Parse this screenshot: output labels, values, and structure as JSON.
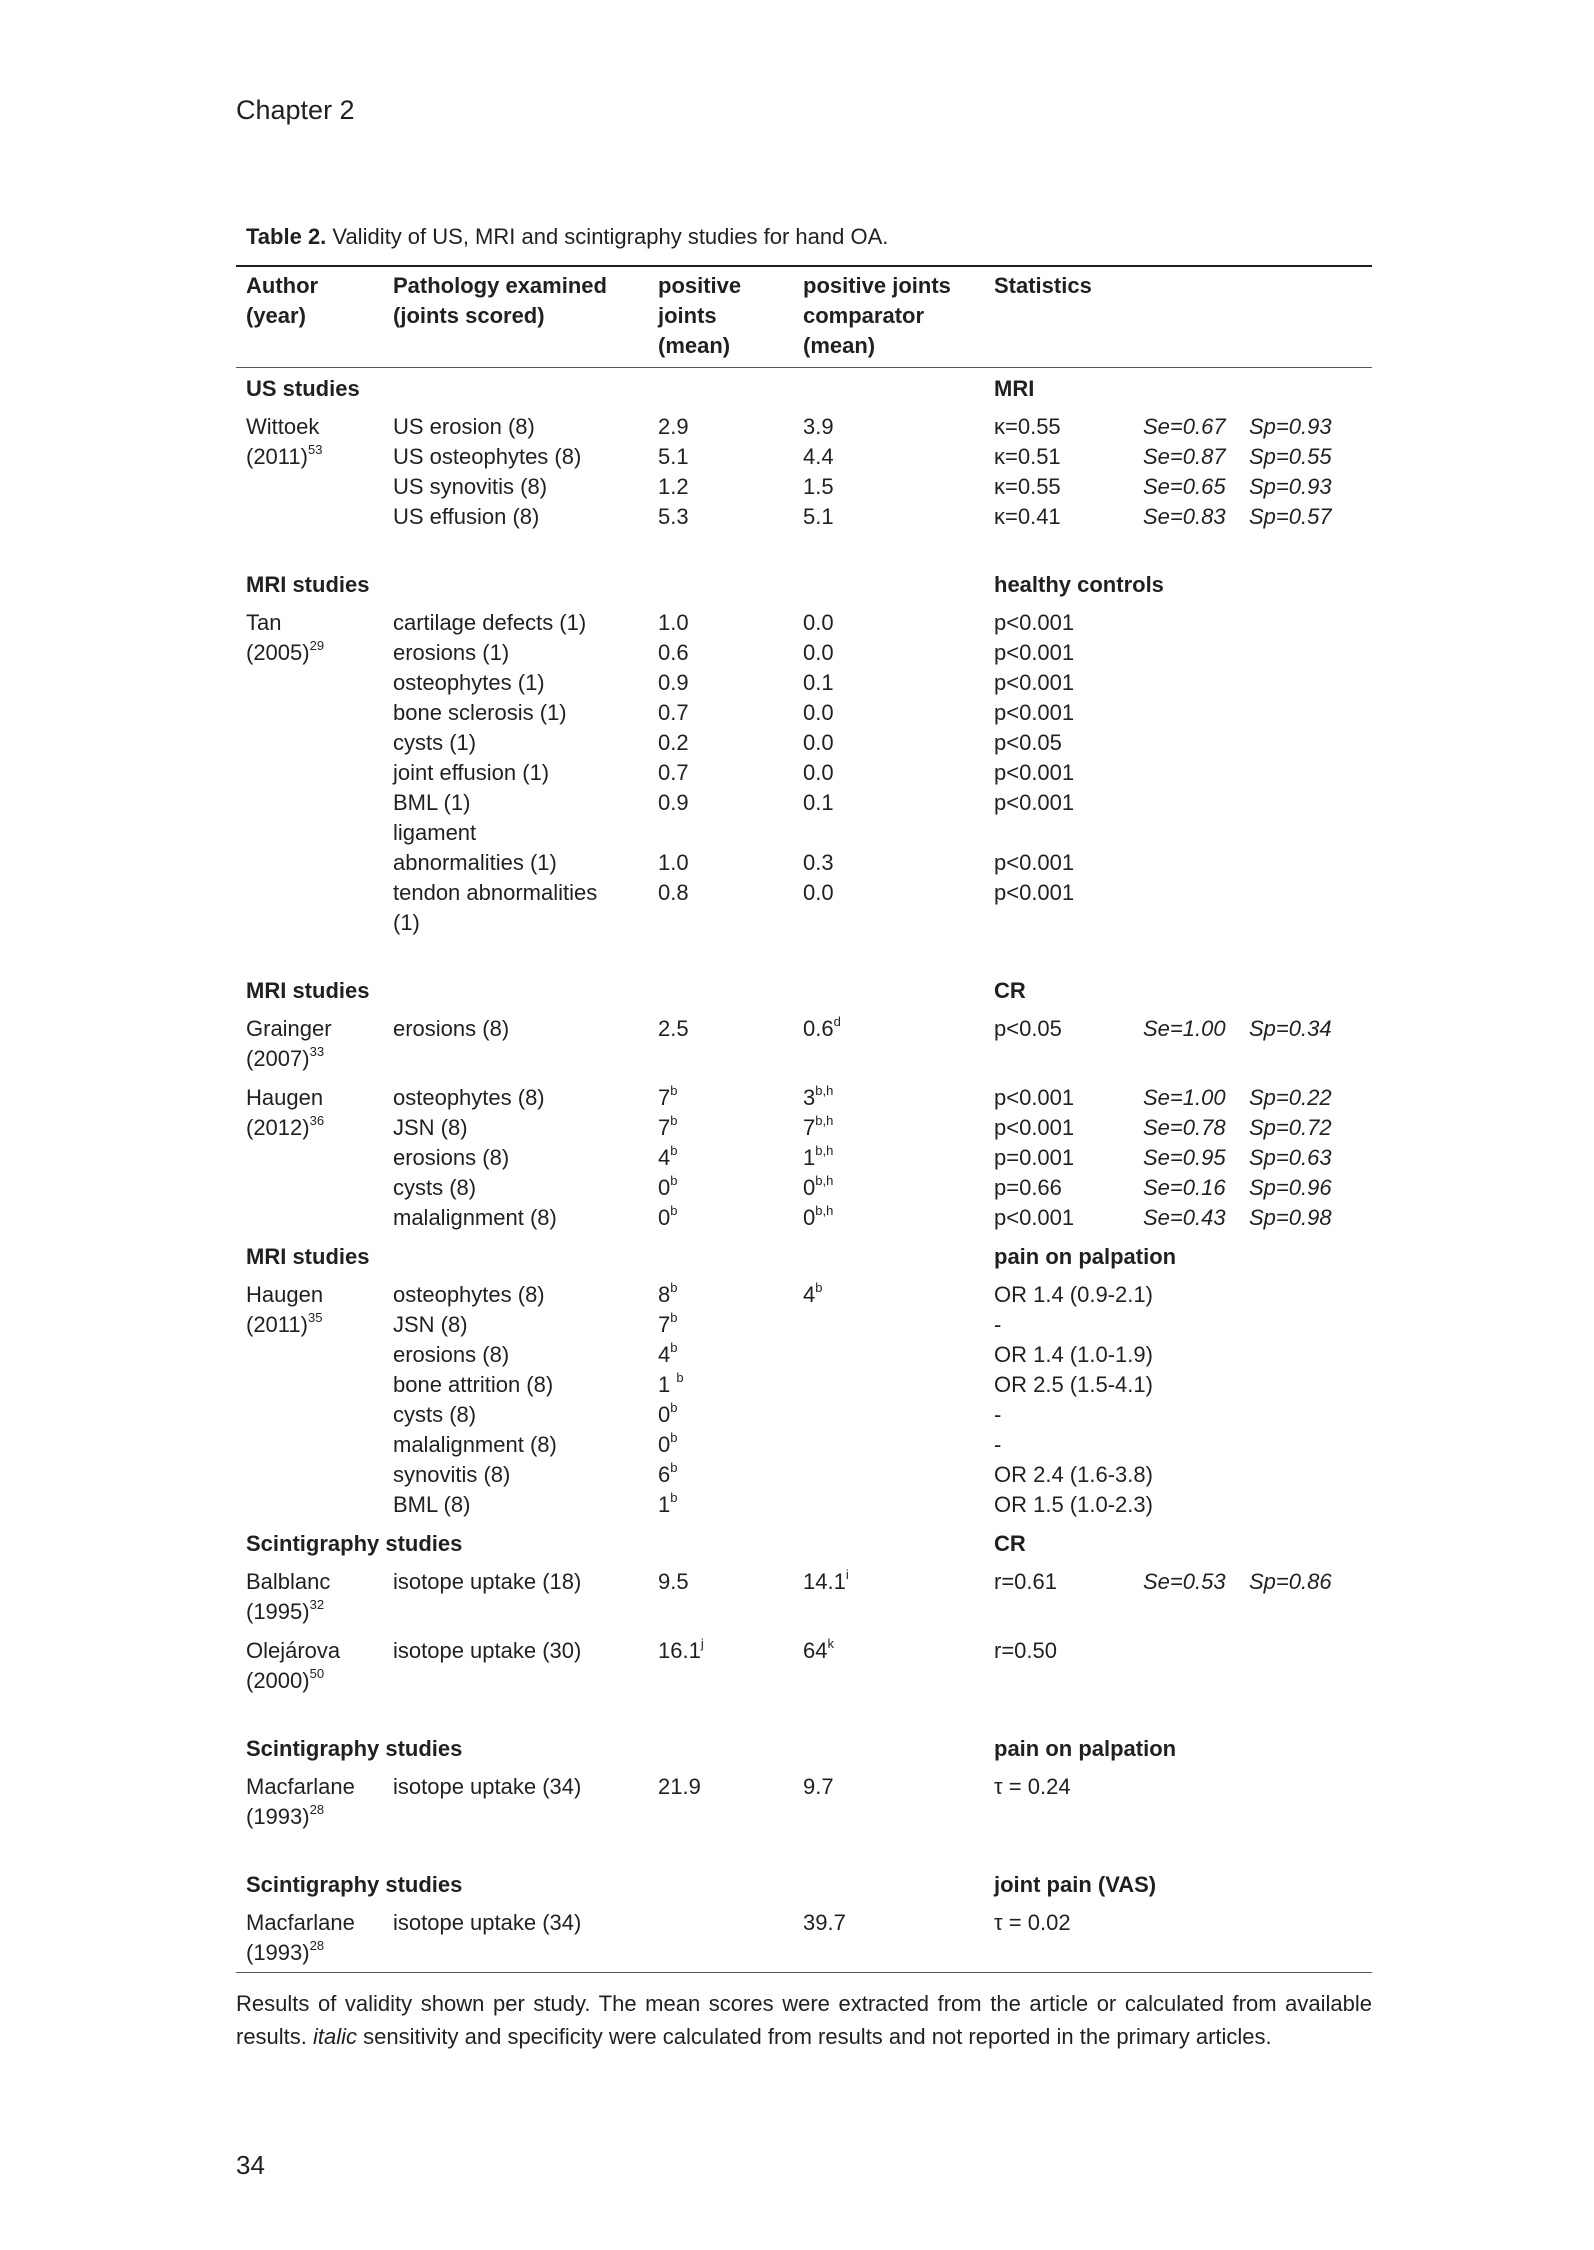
{
  "page": {
    "chapter": "Chapter 2",
    "page_number": "34"
  },
  "caption": {
    "label": "Table 2.",
    "text": " Validity of US, MRI and scintigraphy studies for hand OA."
  },
  "headers": [
    [
      "Author",
      "(year)"
    ],
    [
      "Pathology examined",
      "(joints scored)"
    ],
    [
      "positive",
      "joints",
      "(mean)"
    ],
    [
      "positive joints",
      "comparator",
      "(mean)"
    ],
    [
      "Statistics"
    ]
  ],
  "sections": [
    {
      "title": "US studies",
      "comparator": "MRI",
      "studies": [
        {
          "author": "Wittoek",
          "year": "(2011)",
          "ref": "53",
          "rows": [
            {
              "path": "US erosion (8)",
              "pos": "2.9",
              "comp": "3.9",
              "stat": "κ=0.55",
              "se": "Se=0.67",
              "sp": "Sp=0.93"
            },
            {
              "path": "US osteophytes (8)",
              "pos": "5.1",
              "comp": "4.4",
              "stat": "κ=0.51",
              "se": "Se=0.87",
              "sp": "Sp=0.55"
            },
            {
              "path": "US synovitis (8)",
              "pos": "1.2",
              "comp": "1.5",
              "stat": "κ=0.55",
              "se": "Se=0.65",
              "sp": "Sp=0.93"
            },
            {
              "path": "US effusion (8)",
              "pos": "5.3",
              "comp": "5.1",
              "stat": "κ=0.41",
              "se": "Se=0.83",
              "sp": "Sp=0.57"
            }
          ]
        }
      ]
    },
    {
      "title": "MRI studies",
      "comparator": "healthy controls",
      "studies": [
        {
          "author": "Tan",
          "year": "(2005)",
          "ref": "29",
          "rows": [
            {
              "path": "cartilage defects (1)",
              "pos": "1.0",
              "comp": "0.0",
              "stat": "p<0.001"
            },
            {
              "path": "erosions (1)",
              "pos": "0.6",
              "comp": "0.0",
              "stat": "p<0.001"
            },
            {
              "path": "osteophytes (1)",
              "pos": "0.9",
              "comp": "0.1",
              "stat": "p<0.001"
            },
            {
              "path": "bone sclerosis (1)",
              "pos": "0.7",
              "comp": "0.0",
              "stat": "p<0.001"
            },
            {
              "path": "cysts (1)",
              "pos": "0.2",
              "comp": "0.0",
              "stat": "p<0.05"
            },
            {
              "path": "joint effusion (1)",
              "pos": "0.7",
              "comp": "0.0",
              "stat": "p<0.001"
            },
            {
              "path": "BML (1)",
              "pos": "0.9",
              "comp": "0.1",
              "stat": "p<0.001"
            },
            {
              "path": "ligament"
            },
            {
              "path": "abnormalities (1)",
              "pos": "1.0",
              "comp": "0.3",
              "stat": "p<0.001"
            },
            {
              "path": "tendon abnormalities",
              "pos": "0.8",
              "comp": "0.0",
              "stat": "p<0.001"
            },
            {
              "path": "(1)"
            }
          ]
        }
      ]
    },
    {
      "title": "MRI studies",
      "comparator": "CR",
      "studies": [
        {
          "author": "Grainger",
          "year": "(2007)",
          "ref": "33",
          "rows": [
            {
              "path": "erosions (8)",
              "pos": "2.5",
              "comp": "0.6",
              "comp_sup": "d",
              "stat": "p<0.05",
              "se": "Se=1.00",
              "sp": "Sp=0.34"
            }
          ]
        },
        {
          "author": "Haugen",
          "year": "(2012)",
          "ref": "36",
          "rows": [
            {
              "path": "osteophytes (8)",
              "pos": "7",
              "pos_sup": "b",
              "comp": "3",
              "comp_sup": "b,h",
              "stat": "p<0.001",
              "se": "Se=1.00",
              "sp": "Sp=0.22"
            },
            {
              "path": "JSN (8)",
              "pos": "7",
              "pos_sup": "b",
              "comp": "7",
              "comp_sup": "b,h",
              "stat": "p<0.001",
              "se": "Se=0.78",
              "sp": "Sp=0.72"
            },
            {
              "path": "erosions (8)",
              "pos": "4",
              "pos_sup": "b",
              "comp": "1",
              "comp_sup": "b,h",
              "stat": "p=0.001",
              "se": "Se=0.95",
              "sp": "Sp=0.63"
            },
            {
              "path": "cysts (8)",
              "pos": "0",
              "pos_sup": "b",
              "comp": "0",
              "comp_sup": "b,h",
              "stat": "p=0.66",
              "se": "Se=0.16",
              "sp": "Sp=0.96"
            },
            {
              "path": "malalignment (8)",
              "pos": "0",
              "pos_sup": "b",
              "comp": "0",
              "comp_sup": "b,h",
              "stat": "p<0.001",
              "se": "Se=0.43",
              "sp": "Sp=0.98"
            }
          ]
        }
      ]
    },
    {
      "title": "MRI studies",
      "comparator": "pain on palpation",
      "studies": [
        {
          "author": "Haugen",
          "year": "(2011)",
          "ref": "35",
          "rows": [
            {
              "path": "osteophytes (8)",
              "pos": "8",
              "pos_sup": "b",
              "comp": "4",
              "comp_sup": "b",
              "stat": "OR 1.4 (0.9-2.1)"
            },
            {
              "path": "JSN (8)",
              "pos": "7",
              "pos_sup": "b",
              "stat": "-"
            },
            {
              "path": "erosions (8)",
              "pos": "4",
              "pos_sup": "b",
              "stat": "OR 1.4 (1.0-1.9)"
            },
            {
              "path": "bone attrition (8)",
              "pos": "1 ",
              "pos_sup": "b",
              "stat": "OR 2.5 (1.5-4.1)"
            },
            {
              "path": "cysts (8)",
              "pos": "0",
              "pos_sup": "b",
              "stat": "-"
            },
            {
              "path": "malalignment (8)",
              "pos": "0",
              "pos_sup": "b",
              "stat": "-"
            },
            {
              "path": "synovitis (8)",
              "pos": "6",
              "pos_sup": "b",
              "stat": "OR 2.4 (1.6-3.8)"
            },
            {
              "path": "BML (8)",
              "pos": "1",
              "pos_sup": "b",
              "stat": "OR 1.5 (1.0-2.3)"
            }
          ]
        }
      ]
    },
    {
      "title": "Scintigraphy studies",
      "comparator": "CR",
      "studies": [
        {
          "author": "Balblanc",
          "year": "(1995)",
          "ref": "32",
          "rows": [
            {
              "path": "isotope uptake (18)",
              "pos": "9.5",
              "comp": "14.1",
              "comp_sup": "i",
              "stat": "r=0.61",
              "se": "Se=0.53",
              "sp": "Sp=0.86"
            }
          ]
        },
        {
          "author": "Olejárova",
          "year": "(2000)",
          "ref": "50",
          "rows": [
            {
              "path": "isotope uptake (30)",
              "pos": "16.1",
              "pos_sup": "j",
              "comp": "64",
              "comp_sup": "k",
              "stat": "r=0.50"
            }
          ]
        }
      ]
    },
    {
      "title": "Scintigraphy studies",
      "comparator": "pain on palpation",
      "studies": [
        {
          "author": "Macfarlane",
          "year": "(1993)",
          "ref": "28",
          "rows": [
            {
              "path": "isotope uptake (34)",
              "pos": "21.9",
              "comp": "9.7",
              "stat": "τ = 0.24"
            }
          ]
        }
      ]
    },
    {
      "title": "Scintigraphy studies",
      "comparator": "joint pain (VAS)",
      "studies": [
        {
          "author": "Macfarlane",
          "year": "(1993)",
          "ref": "28",
          "rows": [
            {
              "path": "isotope uptake (34)",
              "comp": "39.7",
              "stat": "τ = 0.02"
            }
          ]
        }
      ]
    }
  ],
  "notes": {
    "part1": "Results of validity shown per study. The mean scores were extracted from the article or calculated from available results. ",
    "italic": "italic",
    "part2": " sensitivity and specificity were calculated from results and not reported in the primary articles."
  }
}
